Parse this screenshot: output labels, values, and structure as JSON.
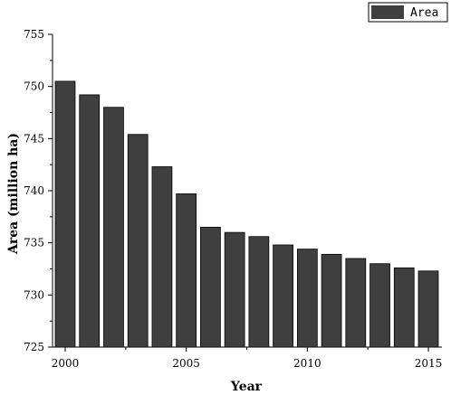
{
  "chart_data": {
    "type": "bar",
    "title": "",
    "xlabel": "Year",
    "ylabel": "Area (million ha)",
    "ylim": [
      725,
      755
    ],
    "yticks": [
      725,
      730,
      735,
      740,
      745,
      750,
      755
    ],
    "xticks": [
      "2000",
      "2005",
      "2010",
      "2015"
    ],
    "categories": [
      2000,
      2001,
      2002,
      2003,
      2004,
      2005,
      2006,
      2007,
      2008,
      2009,
      2010,
      2011,
      2012,
      2013,
      2014,
      2015
    ],
    "series": [
      {
        "name": "Area",
        "color": "#3f3f3f",
        "values": [
          750.5,
          749.2,
          748.0,
          745.4,
          742.3,
          739.7,
          736.5,
          736.0,
          735.6,
          734.8,
          734.4,
          733.9,
          733.5,
          733.0,
          732.6,
          732.3
        ]
      }
    ],
    "legend": {
      "position": "top-right"
    },
    "grid": false
  }
}
